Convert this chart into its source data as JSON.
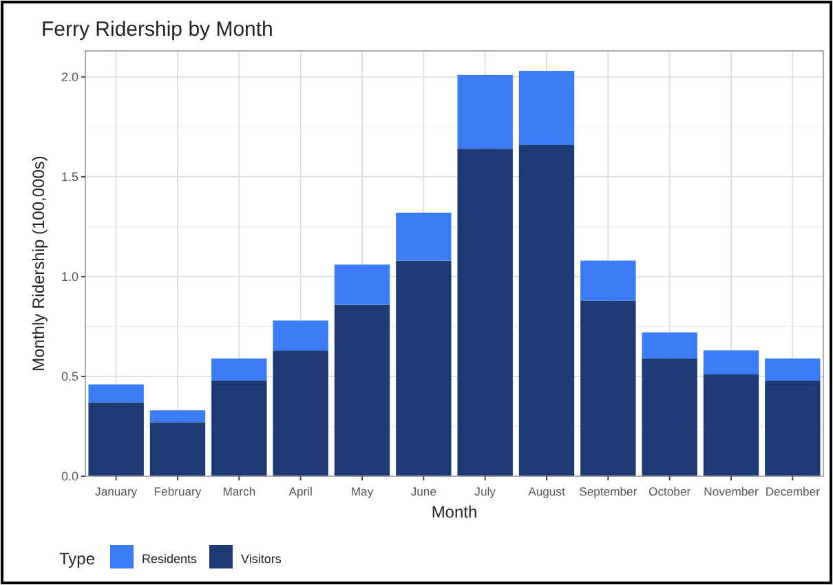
{
  "chart_data": {
    "type": "bar",
    "title": "Ferry Ridership by Month",
    "xlabel": "Month",
    "ylabel": "Monthly Ridership (100,000s)",
    "legend_title": "Type",
    "categories": [
      "January",
      "February",
      "March",
      "April",
      "May",
      "June",
      "July",
      "August",
      "September",
      "October",
      "November",
      "December"
    ],
    "series": [
      {
        "name": "Visitors",
        "color": "#1d3a72",
        "values": [
          0.37,
          0.27,
          0.48,
          0.63,
          0.86,
          1.08,
          1.64,
          1.66,
          0.88,
          0.59,
          0.51,
          0.48
        ]
      },
      {
        "name": "Residents",
        "color": "#3b7bf3",
        "values": [
          0.09,
          0.06,
          0.11,
          0.15,
          0.2,
          0.24,
          0.37,
          0.37,
          0.2,
          0.13,
          0.12,
          0.11
        ]
      }
    ],
    "stacked": true,
    "ylim": [
      0,
      2.13
    ],
    "yticks": [
      {
        "value": 0,
        "label": "0.0"
      },
      {
        "value": 0.5,
        "label": "0.5"
      },
      {
        "value": 1,
        "label": "1.0"
      },
      {
        "value": 1.5,
        "label": "1.5"
      },
      {
        "value": 2,
        "label": "2.0"
      }
    ],
    "grid": true,
    "legend": "bottom left"
  }
}
